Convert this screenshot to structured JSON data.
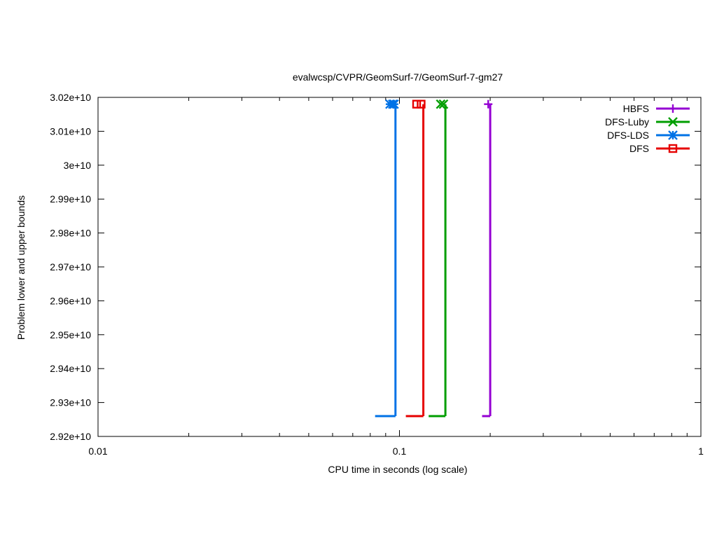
{
  "chart_data": {
    "type": "line",
    "title": "evalwcsp/CVPR/GeomSurf-7/GeomSurf-7-gm27",
    "xlabel": "CPU time in seconds (log scale)",
    "ylabel": "Problem lower and upper bounds",
    "x_scale": "log",
    "xlim": [
      0.01,
      1
    ],
    "ylim": [
      29200000000,
      30200000000
    ],
    "x_ticks": [
      {
        "value": 0.01,
        "label": "0.01"
      },
      {
        "value": 0.1,
        "label": "0.1"
      },
      {
        "value": 1,
        "label": "1"
      }
    ],
    "y_ticks": [
      {
        "value": 29200000000,
        "label": "2.92e+10"
      },
      {
        "value": 29300000000,
        "label": "2.93e+10"
      },
      {
        "value": 29400000000,
        "label": "2.94e+10"
      },
      {
        "value": 29500000000,
        "label": "2.95e+10"
      },
      {
        "value": 29600000000,
        "label": "2.96e+10"
      },
      {
        "value": 29700000000,
        "label": "2.97e+10"
      },
      {
        "value": 29800000000,
        "label": "2.98e+10"
      },
      {
        "value": 29900000000,
        "label": "2.99e+10"
      },
      {
        "value": 30000000000,
        "label": "3e+10"
      },
      {
        "value": 30100000000,
        "label": "3.01e+10"
      },
      {
        "value": 30200000000,
        "label": "3.02e+10"
      }
    ],
    "grid": false,
    "legend_position": "top-right",
    "series": [
      {
        "name": "HBFS",
        "color": "#9400d3",
        "marker": "plus",
        "lower": [
          [
            0.188,
            29260000000
          ],
          [
            0.2,
            29260000000
          ]
        ],
        "upper": [
          [
            0.2,
            29260000000
          ],
          [
            0.2,
            30180000000
          ]
        ],
        "points": [
          [
            0.197,
            30180000000
          ]
        ]
      },
      {
        "name": "DFS-Luby",
        "color": "#009e00",
        "marker": "cross",
        "lower": [
          [
            0.125,
            29260000000
          ],
          [
            0.142,
            29260000000
          ]
        ],
        "upper": [
          [
            0.142,
            29260000000
          ],
          [
            0.142,
            30180000000
          ]
        ],
        "points": [
          [
            0.137,
            30180000000
          ],
          [
            0.14,
            30180000000
          ]
        ]
      },
      {
        "name": "DFS-LDS",
        "color": "#0072e6",
        "marker": "star",
        "lower": [
          [
            0.083,
            29260000000
          ],
          [
            0.097,
            29260000000
          ]
        ],
        "upper": [
          [
            0.097,
            29260000000
          ],
          [
            0.097,
            30180000000
          ]
        ],
        "points": [
          [
            0.093,
            30180000000
          ],
          [
            0.095,
            30180000000
          ],
          [
            0.096,
            30180000000
          ]
        ]
      },
      {
        "name": "DFS",
        "color": "#e60000",
        "marker": "square",
        "lower": [
          [
            0.105,
            29260000000
          ],
          [
            0.12,
            29260000000
          ]
        ],
        "upper": [
          [
            0.12,
            29260000000
          ],
          [
            0.12,
            30180000000
          ]
        ],
        "points": [
          [
            0.114,
            30180000000
          ],
          [
            0.118,
            30180000000
          ]
        ]
      }
    ]
  }
}
